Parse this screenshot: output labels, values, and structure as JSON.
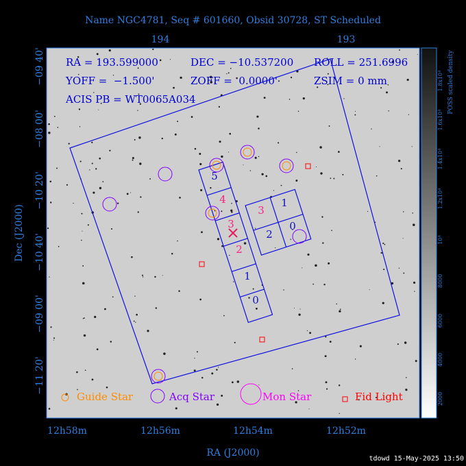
{
  "header": {
    "title": "Name NGC4781, Seq # 601660, Obsid 30728, ST Scheduled"
  },
  "top_axis": {
    "ticks": [
      "194",
      "193"
    ]
  },
  "left_axis": {
    "label": "Dec (J2000)",
    "ticks": [
      "−09 40'",
      "−08 00'",
      "−10 20'",
      "−10 40'",
      "−09 00'",
      "−11 20'"
    ]
  },
  "bottom_axis": {
    "label": "RA (J2000)",
    "ticks": [
      "12h58m",
      "12h56m",
      "12h54m",
      "12h52m"
    ]
  },
  "info": {
    "ra": "RA = 193.599000",
    "dec": "DEC = −10.537200",
    "roll": "ROLL = 251.6996",
    "yoff": "YOFF =  −1.500'",
    "zoff": "ZOFF =  0.0000'",
    "zsim": "ZSIM = 0 mm",
    "acis_pb": "ACIS PB = WT0065A034"
  },
  "s_array": {
    "labels": [
      "5",
      "4",
      "3",
      "2",
      "1",
      "0"
    ]
  },
  "i_array": {
    "labels": [
      "3",
      "1",
      "2",
      "0"
    ]
  },
  "legend": {
    "guide": "Guide Star",
    "acq": "Acq Star",
    "mon": "Mon Star",
    "fid": "Fid Light"
  },
  "colorbar": {
    "label": "POSS scaled density",
    "ticks": [
      "2000",
      "4000",
      "6000",
      "8000",
      "10⁴",
      "1.2x10⁴",
      "1.4x10⁴",
      "1.6x10⁴",
      "1.8x10⁴"
    ]
  },
  "footer": {
    "stamp": "tdowd 15-May-2025 13:50"
  }
}
